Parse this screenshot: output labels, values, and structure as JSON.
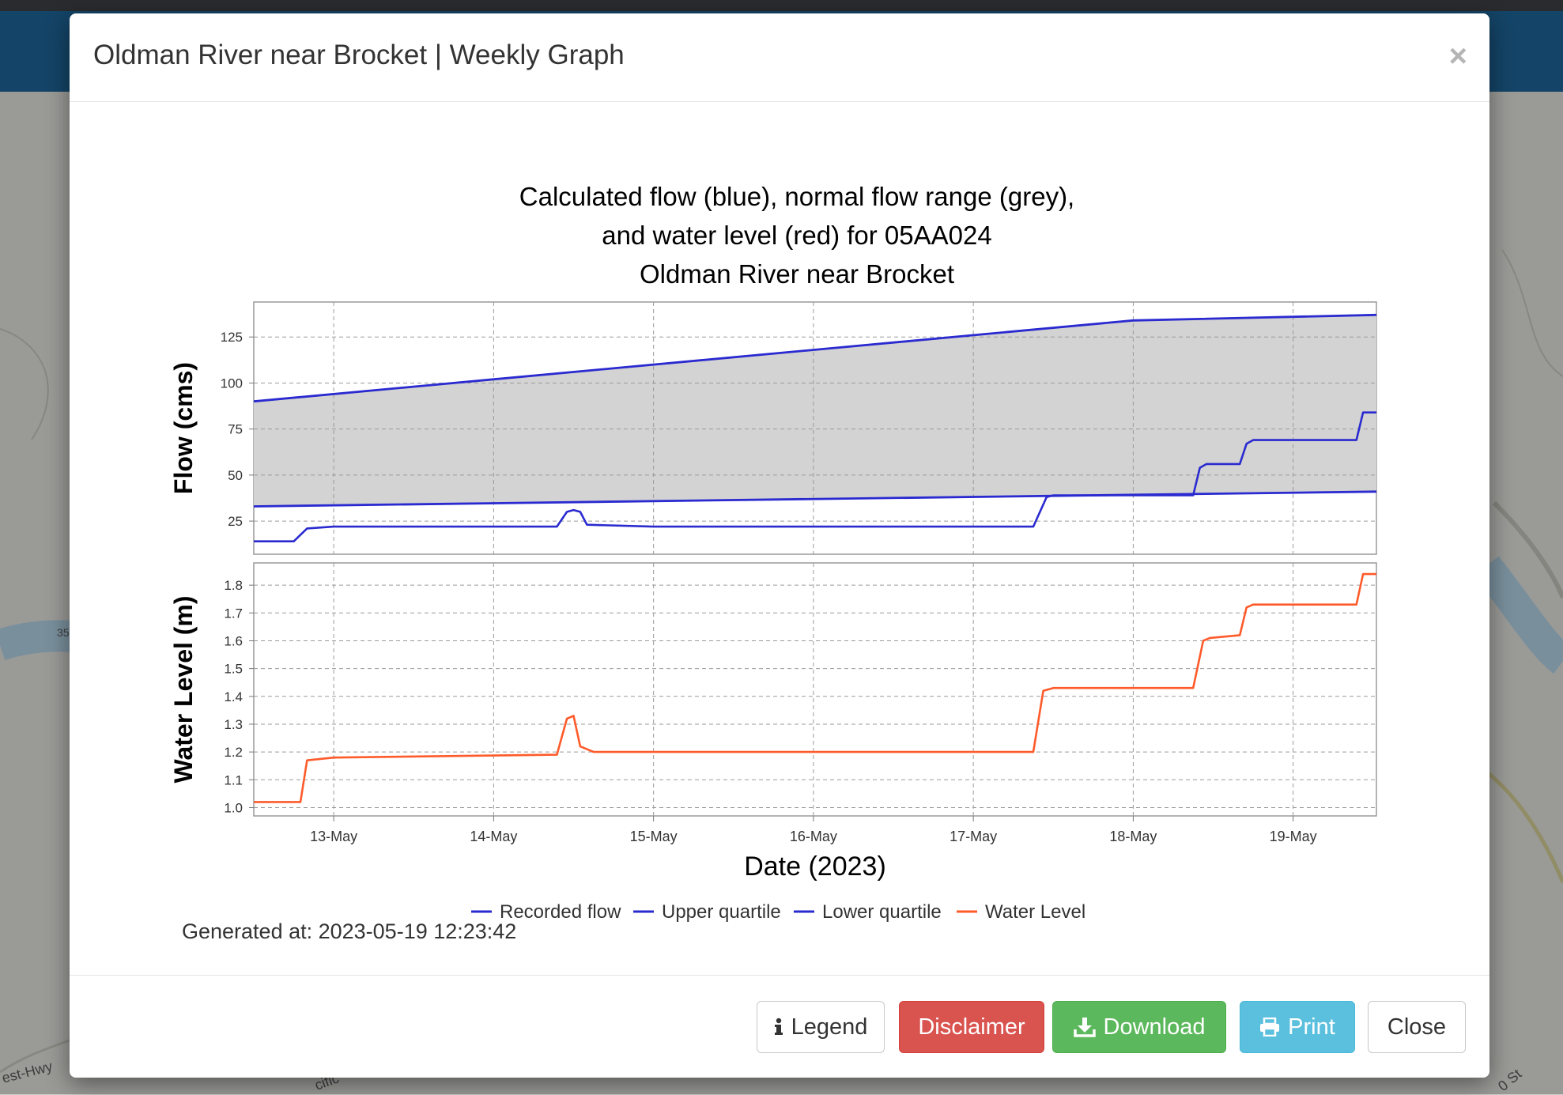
{
  "modal": {
    "title": "Oldman River near Brocket | Weekly Graph",
    "close_symbol": "×",
    "generated_text": "Generated at: 2023-05-19 12:23:42"
  },
  "buttons": {
    "legend": {
      "label": "Legend",
      "icon": "info-icon"
    },
    "disclaimer": {
      "label": "Disclaimer"
    },
    "download": {
      "label": "Download",
      "icon": "download-icon"
    },
    "print": {
      "label": "Print",
      "icon": "print-icon"
    },
    "close": {
      "label": "Close"
    }
  },
  "map": {
    "labels": [
      "est-Hwy",
      "35",
      "cific",
      "0 St"
    ]
  },
  "colors": {
    "flow": "#2a2ad0",
    "water_level": "#ff5a2a",
    "normal_range": "#d3d3d3",
    "danger": "#d9534f",
    "success": "#5cb85c",
    "info": "#5bc0de"
  },
  "chart_data": {
    "type": "line",
    "title_lines": [
      "Calculated flow (blue), normal flow range (grey),",
      "and water level (red) for 05AA024",
      "Oldman River near Brocket"
    ],
    "xlabel": "Date (2023)",
    "x_ticks": [
      "13-May",
      "14-May",
      "15-May",
      "16-May",
      "17-May",
      "18-May",
      "19-May"
    ],
    "x_range": [
      "2023-05-12T12:00",
      "2023-05-19T12:30"
    ],
    "legend": [
      "Recorded flow",
      "Upper quartile",
      "Lower quartile",
      "Water Level"
    ],
    "legend_position": "bottom",
    "grid": true,
    "panels": [
      {
        "ylabel": "Flow (cms)",
        "y_ticks": [
          "25",
          "50",
          "75",
          "100",
          "125"
        ],
        "ylim": [
          7,
          144
        ],
        "band": {
          "name": "normal flow range",
          "between": [
            "Upper quartile",
            "Lower quartile"
          ],
          "color": "grey"
        },
        "series": [
          {
            "name": "Upper quartile",
            "color": "blue",
            "points": [
              [
                "2023-05-12T12:00",
                90
              ],
              [
                "2023-05-18T00:00",
                134
              ],
              [
                "2023-05-19T12:30",
                137
              ]
            ]
          },
          {
            "name": "Lower quartile",
            "color": "blue",
            "points": [
              [
                "2023-05-12T12:00",
                33
              ],
              [
                "2023-05-19T12:30",
                41
              ]
            ]
          },
          {
            "name": "Recorded flow",
            "color": "blue",
            "points": [
              [
                "2023-05-12T12:00",
                14
              ],
              [
                "2023-05-12T18:00",
                14
              ],
              [
                "2023-05-12T20:00",
                21
              ],
              [
                "2023-05-13T00:00",
                22
              ],
              [
                "2023-05-14T09:30",
                22
              ],
              [
                "2023-05-14T11:00",
                30
              ],
              [
                "2023-05-14T12:00",
                31
              ],
              [
                "2023-05-14T13:00",
                30
              ],
              [
                "2023-05-14T14:00",
                23
              ],
              [
                "2023-05-15T00:00",
                22
              ],
              [
                "2023-05-17T09:00",
                22
              ],
              [
                "2023-05-17T11:00",
                38
              ],
              [
                "2023-05-17T12:00",
                39
              ],
              [
                "2023-05-18T09:00",
                39
              ],
              [
                "2023-05-18T10:00",
                54
              ],
              [
                "2023-05-18T11:00",
                56
              ],
              [
                "2023-05-18T16:00",
                56
              ],
              [
                "2023-05-18T17:00",
                67
              ],
              [
                "2023-05-18T18:00",
                69
              ],
              [
                "2023-05-19T09:30",
                69
              ],
              [
                "2023-05-19T10:30",
                84
              ],
              [
                "2023-05-19T12:30",
                84
              ]
            ]
          }
        ]
      },
      {
        "ylabel": "Water Level (m)",
        "y_ticks": [
          "1.0",
          "1.1",
          "1.2",
          "1.3",
          "1.4",
          "1.5",
          "1.6",
          "1.7",
          "1.8"
        ],
        "ylim": [
          0.97,
          1.88
        ],
        "series": [
          {
            "name": "Water Level",
            "color": "red",
            "points": [
              [
                "2023-05-12T12:00",
                1.02
              ],
              [
                "2023-05-12T19:00",
                1.02
              ],
              [
                "2023-05-12T20:00",
                1.17
              ],
              [
                "2023-05-13T00:00",
                1.18
              ],
              [
                "2023-05-14T09:30",
                1.19
              ],
              [
                "2023-05-14T11:00",
                1.32
              ],
              [
                "2023-05-14T12:00",
                1.33
              ],
              [
                "2023-05-14T13:00",
                1.22
              ],
              [
                "2023-05-14T15:00",
                1.2
              ],
              [
                "2023-05-17T09:00",
                1.2
              ],
              [
                "2023-05-17T10:30",
                1.42
              ],
              [
                "2023-05-17T12:00",
                1.43
              ],
              [
                "2023-05-18T09:00",
                1.43
              ],
              [
                "2023-05-18T10:30",
                1.6
              ],
              [
                "2023-05-18T11:30",
                1.61
              ],
              [
                "2023-05-18T16:00",
                1.62
              ],
              [
                "2023-05-18T17:00",
                1.72
              ],
              [
                "2023-05-18T18:00",
                1.73
              ],
              [
                "2023-05-19T09:30",
                1.73
              ],
              [
                "2023-05-19T10:30",
                1.84
              ],
              [
                "2023-05-19T12:30",
                1.84
              ]
            ]
          }
        ]
      }
    ]
  }
}
